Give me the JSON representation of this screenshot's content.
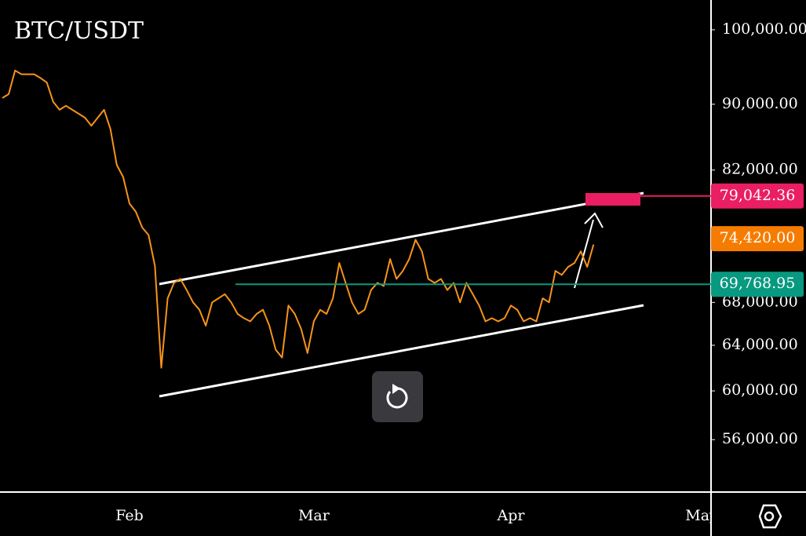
{
  "chart_data": {
    "type": "line",
    "title": "BTC/USDT",
    "color": "#f7931a",
    "log_scale": true,
    "ylim": [
      52000,
      104300
    ],
    "yticks": [
      {
        "value": 56000,
        "label": "56,000.00"
      },
      {
        "value": 60000,
        "label": "60,000.00"
      },
      {
        "value": 64000,
        "label": "64,000.00"
      },
      {
        "value": 68000,
        "label": "68,000.00"
      },
      {
        "value": 82000,
        "label": "82,000.00"
      },
      {
        "value": 90000,
        "label": "90,000.00"
      },
      {
        "value": 100000,
        "label": "100,000.00"
      }
    ],
    "categories": [
      null,
      null,
      null,
      null,
      null,
      null,
      null,
      null,
      null,
      null,
      null,
      null,
      null,
      null,
      null,
      null,
      null,
      null,
      null,
      null,
      "Feb",
      null,
      null,
      null,
      null,
      null,
      null,
      null,
      null,
      null,
      null,
      null,
      null,
      null,
      null,
      null,
      null,
      null,
      null,
      null,
      null,
      null,
      null,
      null,
      null,
      null,
      null,
      null,
      null,
      "Mar",
      null,
      null,
      null,
      null,
      null,
      null,
      null,
      null,
      null,
      null,
      null,
      null,
      null,
      null,
      null,
      null,
      null,
      null,
      null,
      null,
      null,
      null,
      null,
      null,
      null,
      null,
      null,
      null,
      null,
      null,
      "Apr",
      null,
      null,
      null,
      null,
      null,
      null,
      null,
      null,
      null,
      null,
      null,
      null,
      null,
      null,
      null,
      null,
      null,
      null,
      null,
      null,
      null,
      null,
      null,
      null,
      null,
      null,
      null,
      null,
      null,
      "May"
    ],
    "values": [
      90800,
      91300,
      94400,
      93900,
      93900,
      93900,
      93400,
      92800,
      90300,
      89300,
      89800,
      89300,
      88800,
      88300,
      87300,
      88300,
      89300,
      86900,
      82600,
      81200,
      78200,
      77300,
      75600,
      74800,
      71600,
      62000,
      68400,
      69900,
      70300,
      69200,
      68000,
      67300,
      65800,
      68000,
      68400,
      68800,
      68000,
      66900,
      66500,
      66200,
      66900,
      67300,
      65800,
      63600,
      62900,
      67700,
      66900,
      65500,
      63300,
      66200,
      67300,
      66900,
      68400,
      71900,
      69900,
      68000,
      66900,
      67300,
      69200,
      69900,
      69600,
      72300,
      70300,
      71100,
      72300,
      74300,
      73100,
      70300,
      69900,
      70300,
      69200,
      69900,
      68000,
      69900,
      68800,
      67700,
      66200,
      66500,
      66200,
      66500,
      67700,
      67300,
      66200,
      66500,
      66200,
      68400,
      68000,
      71100,
      70700,
      71500,
      71900,
      73100,
      71500,
      73800,
      null,
      null,
      null,
      null,
      null,
      null,
      null,
      null,
      null,
      null,
      null,
      null,
      null,
      null,
      null,
      null,
      null
    ],
    "price_labels": [
      {
        "value": 79042.36,
        "label": "79,042.36",
        "color": "#e91e63"
      },
      {
        "value": 74420,
        "label": "74,420.00",
        "color": "#f57c00"
      },
      {
        "value": 69768.95,
        "label": "69,768.95",
        "color": "#089981"
      }
    ]
  }
}
